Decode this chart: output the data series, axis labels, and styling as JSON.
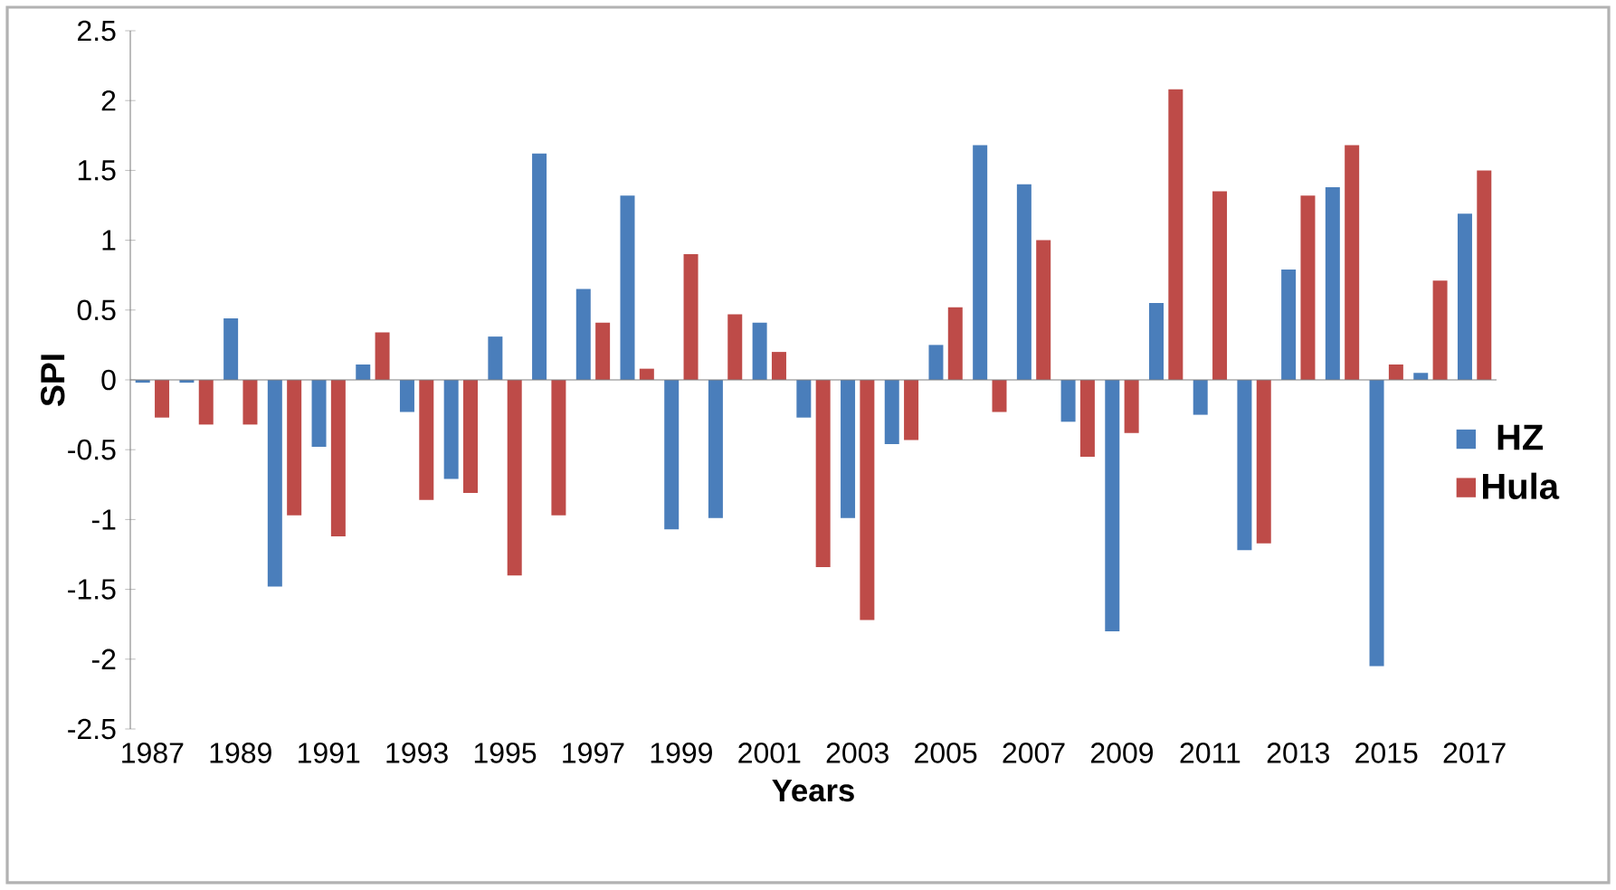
{
  "chart_data": {
    "type": "bar",
    "xlabel": "Years",
    "ylabel": "SPI",
    "categories": [
      "1987",
      null,
      "1989",
      null,
      "1991",
      null,
      "1993",
      null,
      "1995",
      null,
      "1997",
      null,
      "1999",
      null,
      "2001",
      null,
      "2003",
      null,
      "2005",
      null,
      "2007",
      null,
      "2009",
      null,
      "2011",
      null,
      "2013",
      null,
      "2015",
      null,
      "2017"
    ],
    "series": [
      {
        "name": "HZ",
        "color": "#4a7ebb",
        "values": [
          -0.02,
          -0.02,
          0.44,
          -1.48,
          -0.48,
          0.11,
          -0.23,
          -0.71,
          0.31,
          1.62,
          0.65,
          1.32,
          -1.07,
          -0.99,
          0.41,
          -0.27,
          -0.99,
          -0.46,
          0.25,
          1.68,
          1.4,
          -0.3,
          -1.8,
          0.55,
          -0.25,
          -1.22,
          0.79,
          1.38,
          -2.05,
          0.05,
          1.19
        ]
      },
      {
        "name": "Hula",
        "color": "#be4b48",
        "values": [
          -0.27,
          -0.32,
          -0.32,
          -0.97,
          -1.12,
          0.34,
          -0.86,
          -0.81,
          -1.4,
          -0.97,
          0.41,
          0.08,
          0.9,
          0.47,
          0.2,
          -1.34,
          -1.72,
          -0.43,
          0.52,
          -0.23,
          1.0,
          -0.55,
          -0.38,
          2.08,
          1.35,
          -1.17,
          1.32,
          1.68,
          0.11,
          0.71,
          1.5
        ]
      }
    ],
    "ylim": [
      -2.5,
      2.5
    ],
    "yticks": [
      -2.5,
      -2,
      -1.5,
      -1,
      -0.5,
      0,
      0.5,
      1,
      1.5,
      2,
      2.5
    ],
    "legend": "right"
  }
}
